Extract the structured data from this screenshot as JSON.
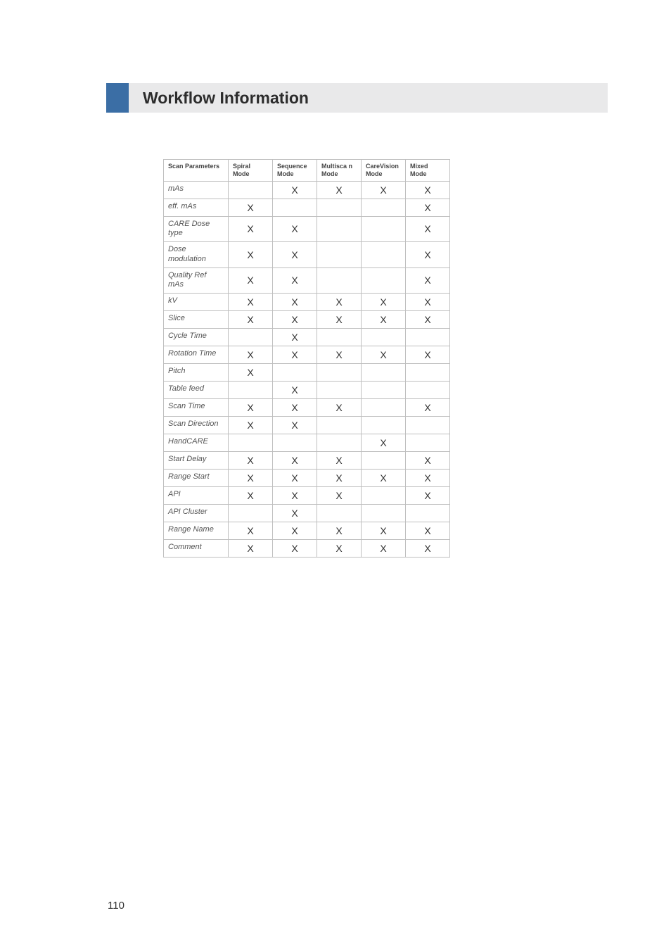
{
  "header": {
    "title": "Workflow Information",
    "accent_color": "#3b6ea5",
    "bar_color": "#e9e9ea"
  },
  "table": {
    "columns": [
      {
        "label": "Scan Parameters"
      },
      {
        "label": "Spiral Mode"
      },
      {
        "label": "Sequence Mode"
      },
      {
        "label": "Multisca n Mode"
      },
      {
        "label": "CareVision Mode"
      },
      {
        "label": "Mixed Mode"
      }
    ],
    "rows": [
      {
        "param": "mAs",
        "cells": [
          "",
          "X",
          "X",
          "X",
          "X"
        ]
      },
      {
        "param": "eff. mAs",
        "cells": [
          "X",
          "",
          "",
          "",
          "X"
        ]
      },
      {
        "param": "CARE Dose type",
        "cells": [
          "X",
          "X",
          "",
          "",
          "X"
        ]
      },
      {
        "param": "Dose modulation",
        "cells": [
          "X",
          "X",
          "",
          "",
          "X"
        ]
      },
      {
        "param": "Quality Ref mAs",
        "cells": [
          "X",
          "X",
          "",
          "",
          "X"
        ]
      },
      {
        "param": "kV",
        "cells": [
          "X",
          "X",
          "X",
          "X",
          "X"
        ]
      },
      {
        "param": "Slice",
        "cells": [
          "X",
          "X",
          "X",
          "X",
          "X"
        ]
      },
      {
        "param": "Cycle Time",
        "cells": [
          "",
          "X",
          "",
          "",
          ""
        ]
      },
      {
        "param": "Rotation Time",
        "cells": [
          "X",
          "X",
          "X",
          "X",
          "X"
        ]
      },
      {
        "param": "Pitch",
        "cells": [
          "X",
          "",
          "",
          "",
          ""
        ]
      },
      {
        "param": "Table feed",
        "cells": [
          "",
          "X",
          "",
          "",
          ""
        ]
      },
      {
        "param": "Scan Time",
        "cells": [
          "X",
          "X",
          "X",
          "",
          "X"
        ]
      },
      {
        "param": "Scan Direction",
        "cells": [
          "X",
          "X",
          "",
          "",
          ""
        ]
      },
      {
        "param": "HandCARE",
        "cells": [
          "",
          "",
          "",
          "X",
          ""
        ]
      },
      {
        "param": "Start Delay",
        "cells": [
          "X",
          "X",
          "X",
          "",
          "X"
        ]
      },
      {
        "param": "Range  Start",
        "cells": [
          "X",
          "X",
          "X",
          "X",
          "X"
        ]
      },
      {
        "param": "API",
        "cells": [
          "X",
          "X",
          "X",
          "",
          "X"
        ]
      },
      {
        "param": "API Cluster",
        "cells": [
          "",
          "X",
          "",
          "",
          ""
        ]
      },
      {
        "param": "Range Name",
        "cells": [
          "X",
          "X",
          "X",
          "X",
          "X"
        ]
      },
      {
        "param": "Comment",
        "cells": [
          "X",
          "X",
          "X",
          "X",
          "X"
        ]
      }
    ]
  },
  "page_number": "110"
}
